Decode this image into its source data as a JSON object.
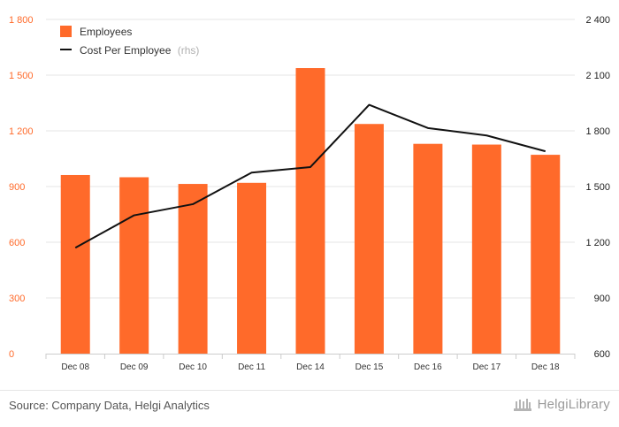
{
  "colors": {
    "bar": "#ff6a2a",
    "line": "#111111",
    "left_axis_text": "#ff6a2a",
    "right_axis_text": "#222222",
    "grid": "#e6e6e6",
    "axis_label": "#333333"
  },
  "chart_data": {
    "type": "bar",
    "categories": [
      "Dec 08",
      "Dec 09",
      "Dec 10",
      "Dec 11",
      "Dec 14",
      "Dec 15",
      "Dec 16",
      "Dec 17",
      "Dec 18"
    ],
    "series": [
      {
        "name": "Employees",
        "type": "bar",
        "axis": "left",
        "values": [
          962,
          950,
          914,
          920,
          1538,
          1237,
          1130,
          1126,
          1071
        ]
      },
      {
        "name": "Cost Per Employee",
        "name_suffix": "(rhs)",
        "type": "line",
        "axis": "right",
        "values": [
          1170,
          1345,
          1405,
          1575,
          1605,
          1940,
          1815,
          1775,
          1690
        ]
      }
    ],
    "left_axis": {
      "min": 0,
      "max": 1800,
      "ticks": [
        0,
        300,
        600,
        900,
        1200,
        1500,
        1800
      ],
      "tick_labels": [
        "0",
        "300",
        "600",
        "900",
        "1 200",
        "1 500",
        "1 800"
      ]
    },
    "right_axis": {
      "min": 600,
      "max": 2400,
      "ticks": [
        600,
        900,
        1200,
        1500,
        1800,
        2100,
        2400
      ],
      "tick_labels": [
        "600",
        "900",
        "1 200",
        "1 500",
        "1 800",
        "2 100",
        "2 400"
      ]
    },
    "legend": {
      "position": "top-left"
    },
    "grid": true
  },
  "footer": {
    "source": "Source: Company Data, Helgi Analytics",
    "logo_text": "HelgiLibrary"
  }
}
